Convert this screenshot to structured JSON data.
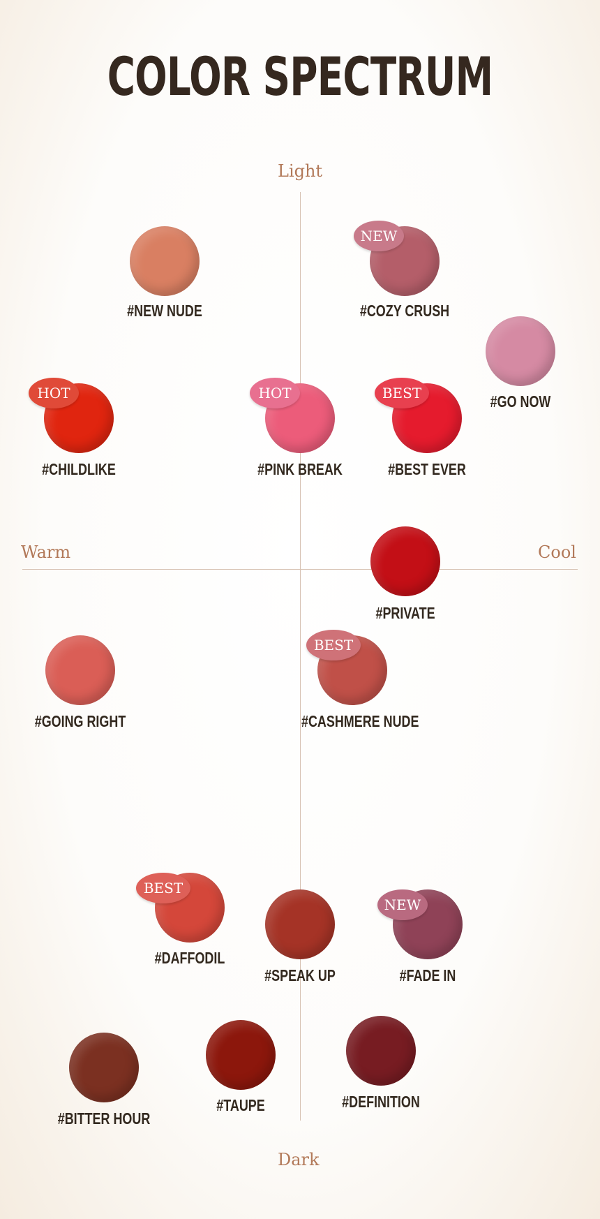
{
  "title": "COLOR SPECTRUM",
  "axes": {
    "top": "Light",
    "bottom": "Dark",
    "left": "Warm",
    "right": "Cool"
  },
  "shades": [
    {
      "label": "#NEW NUDE",
      "color": "#d97f62",
      "badge": null,
      "badge_color": null
    },
    {
      "label": "#COZY CRUSH",
      "color": "#b45e69",
      "badge": "NEW",
      "badge_color": "#c87a8a"
    },
    {
      "label": "#GO NOW",
      "color": "#d58aa3",
      "badge": null,
      "badge_color": null
    },
    {
      "label": "#CHILDLIKE",
      "color": "#e0250f",
      "badge": "HOT",
      "badge_color": "#e04a38"
    },
    {
      "label": "#PINK BREAK",
      "color": "#ec5c7a",
      "badge": "HOT",
      "badge_color": "#e87090"
    },
    {
      "label": "#BEST EVER",
      "color": "#e51b2d",
      "badge": "BEST",
      "badge_color": "#e8404f"
    },
    {
      "label": "#PRIVATE",
      "color": "#c30f16",
      "badge": null,
      "badge_color": null
    },
    {
      "label": "#GOING RIGHT",
      "color": "#da5e56",
      "badge": null,
      "badge_color": null
    },
    {
      "label": "#CASHMERE NUDE",
      "color": "#c05048",
      "badge": "BEST",
      "badge_color": "#cf7278"
    },
    {
      "label": "#DAFFODIL",
      "color": "#d4473a",
      "badge": "BEST",
      "badge_color": "#de6058"
    },
    {
      "label": "#SPEAK UP",
      "color": "#a53326",
      "badge": null,
      "badge_color": null
    },
    {
      "label": "#FADE IN",
      "color": "#8f4257",
      "badge": "NEW",
      "badge_color": "#b96a80"
    },
    {
      "label": "#BITTER HOUR",
      "color": "#7b3021",
      "badge": null,
      "badge_color": null
    },
    {
      "label": "#TAUPE",
      "color": "#8c170c",
      "badge": null,
      "badge_color": null
    },
    {
      "label": "#DEFINITION",
      "color": "#771c22",
      "badge": null,
      "badge_color": null
    }
  ]
}
